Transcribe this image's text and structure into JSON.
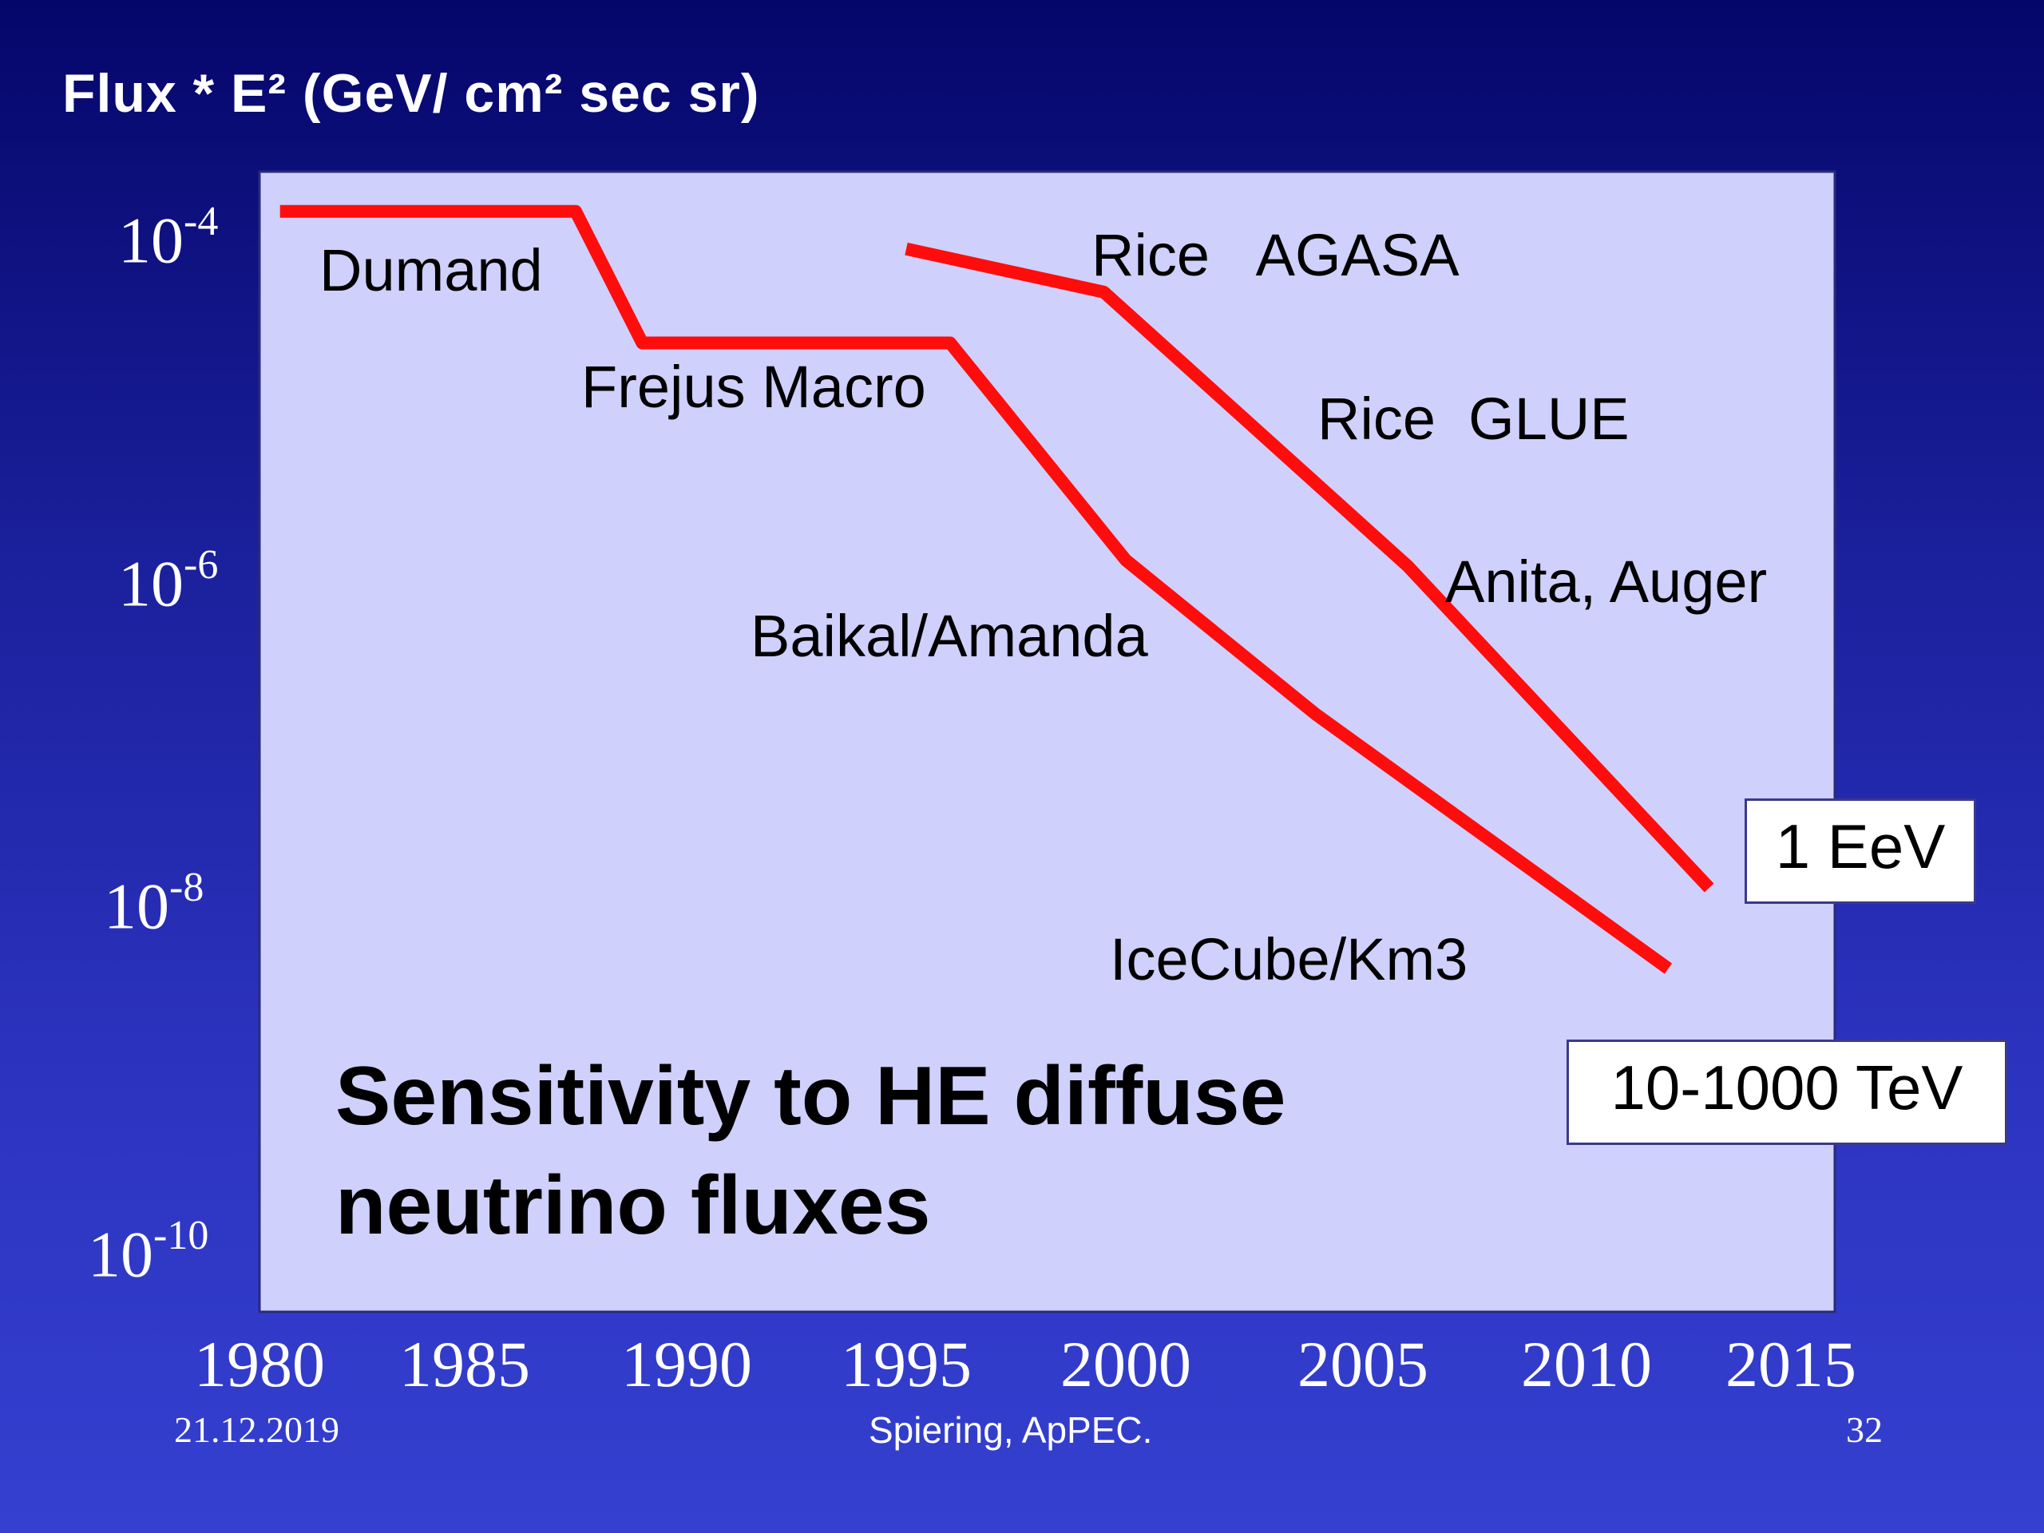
{
  "chart_data": {
    "type": "line",
    "ylabel": "Flux * E²  (GeV/ cm² sec sr)",
    "x_ticks": [
      "1980",
      "1985",
      "1990",
      "1995",
      "2000",
      "2005",
      "2010",
      "2015"
    ],
    "y_ticks": [
      {
        "base": "10",
        "exp": "-4",
        "value": 0.0001
      },
      {
        "base": "10",
        "exp": "-6",
        "value": 1e-06
      },
      {
        "base": "10",
        "exp": "-8",
        "value": 1e-08
      },
      {
        "base": "10",
        "exp": "-10",
        "value": 1e-10
      }
    ],
    "y_scale": "log",
    "grid": false,
    "series": [
      {
        "name": "10-1000 TeV",
        "x": [
          1980.5,
          1987.5,
          1989,
          1996,
          2000,
          2004,
          2012
        ],
        "y": [
          0.00015,
          0.00015,
          2.5e-05,
          2.5e-05,
          1.3e-06,
          1.6e-07,
          5e-09
        ]
      },
      {
        "name": "1 EeV",
        "x": [
          1995,
          1999.5,
          2006,
          2013
        ],
        "y": [
          9e-05,
          5e-05,
          1.2e-06,
          1.5e-08
        ]
      }
    ],
    "annotations": [
      "Dumand",
      "Frejus  Macro",
      "Baikal/Amanda",
      "IceCube/Km3",
      "Rice   AGASA",
      "Rice  GLUE",
      "Anita, Auger"
    ],
    "caption": [
      "Sensitivity to HE diffuse",
      "neutrino fluxes"
    ],
    "line_color": "#ff0d0d",
    "plot_background": "#cfd0fb"
  },
  "footer": {
    "date": "21.12.2019",
    "author": "Spiering, ApPEC.",
    "page": "32"
  }
}
